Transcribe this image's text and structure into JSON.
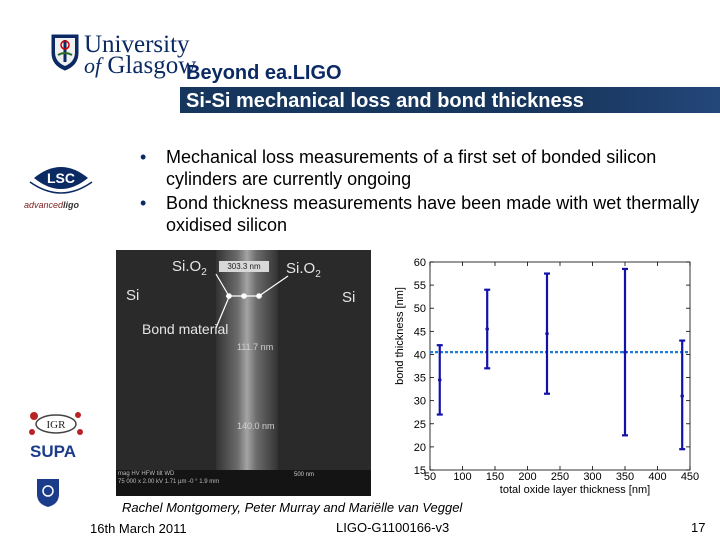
{
  "header": {
    "university_line1": "University",
    "university_of": "of",
    "university_line2": "Glasgow",
    "title": "Beyond ea.LIGO",
    "subtitle": "Si-Si mechanical loss and bond thickness"
  },
  "bullets": [
    "Mechanical loss measurements of a first set of bonded silicon cylinders are currently ongoing",
    "Bond thickness measurements have been made with wet thermally oxidised silicon"
  ],
  "logos": {
    "lsc": "LSC",
    "advanced_prefix": "advanced",
    "advanced_suffix": "ligo",
    "igr": "IGR",
    "supa": "SUPA"
  },
  "sem": {
    "label_sio2_left": "Si.O",
    "label_sio2_left_sub": "2",
    "label_sio2_right": "Si.O",
    "label_sio2_right_sub": "2",
    "label_si_left": "Si",
    "label_si_right": "Si",
    "label_bond": "Bond material",
    "scale_top": "303.3 nm",
    "scale_mid": "111.7 nm",
    "scale_bottom": "140.0 nm",
    "info_line1": "mag     HV     HFW    tilt    WD",
    "info_line2": "75 000 x  2.00 kV  1.71 µm  -0 °  1.9 mm",
    "scale_bar": "500 nm"
  },
  "chart_data": {
    "type": "scatter",
    "xlabel": "total oxide layer thickness [nm]",
    "ylabel": "bond thickness [nm]",
    "xlim": [
      50,
      450
    ],
    "ylim": [
      15,
      60
    ],
    "xticks": [
      50,
      100,
      150,
      200,
      250,
      300,
      350,
      400,
      450
    ],
    "yticks": [
      15,
      20,
      25,
      30,
      35,
      40,
      45,
      50,
      55,
      60
    ],
    "points": [
      {
        "x": 65,
        "y": 34.5,
        "ylow": 27,
        "yhigh": 42
      },
      {
        "x": 138,
        "y": 45.5,
        "ylow": 37,
        "yhigh": 54
      },
      {
        "x": 230,
        "y": 44.5,
        "ylow": 31.5,
        "yhigh": 57.5
      },
      {
        "x": 350,
        "y": 40.5,
        "ylow": 22.5,
        "yhigh": 58.5
      },
      {
        "x": 438,
        "y": 31,
        "ylow": 19.5,
        "yhigh": 43
      }
    ],
    "mean_line": 40.5,
    "colors": {
      "points": "#1212a8",
      "mean_line": "#1e7bd6",
      "axis": "#000000"
    }
  },
  "footer": {
    "authors": "Rachel Montgomery, Peter Murray and Mariëlle van Veggel",
    "date": "16th March 2011",
    "doc_id": "LIGO-G1100166-v3",
    "page_number": "17"
  }
}
